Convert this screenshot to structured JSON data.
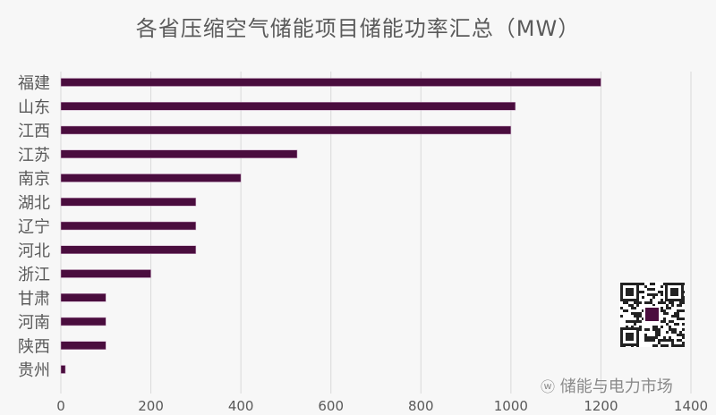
{
  "chart_data": {
    "type": "bar",
    "orientation": "horizontal",
    "title": "各省压缩空气储能项目储能功率汇总（MW）",
    "categories": [
      "福建",
      "山东",
      "江西",
      "江苏",
      "南京",
      "湖北",
      "辽宁",
      "河北",
      "浙江",
      "甘肃",
      "河南",
      "陕西",
      "贵州"
    ],
    "values": [
      1200,
      1010,
      1000,
      525,
      400,
      300,
      300,
      300,
      200,
      100,
      100,
      100,
      10
    ],
    "xlim": [
      0,
      1400
    ],
    "xticks": [
      "0",
      "200",
      "400",
      "600",
      "800",
      "1000",
      "1200",
      "1400"
    ],
    "grid": true,
    "bar_color": "#4a0d3e",
    "grid_color": "#d9d9d9"
  },
  "watermark": {
    "text": "储能与电力市场",
    "icon": "wechat-icon"
  },
  "qr_code": {
    "icon": "qr-code-icon"
  }
}
